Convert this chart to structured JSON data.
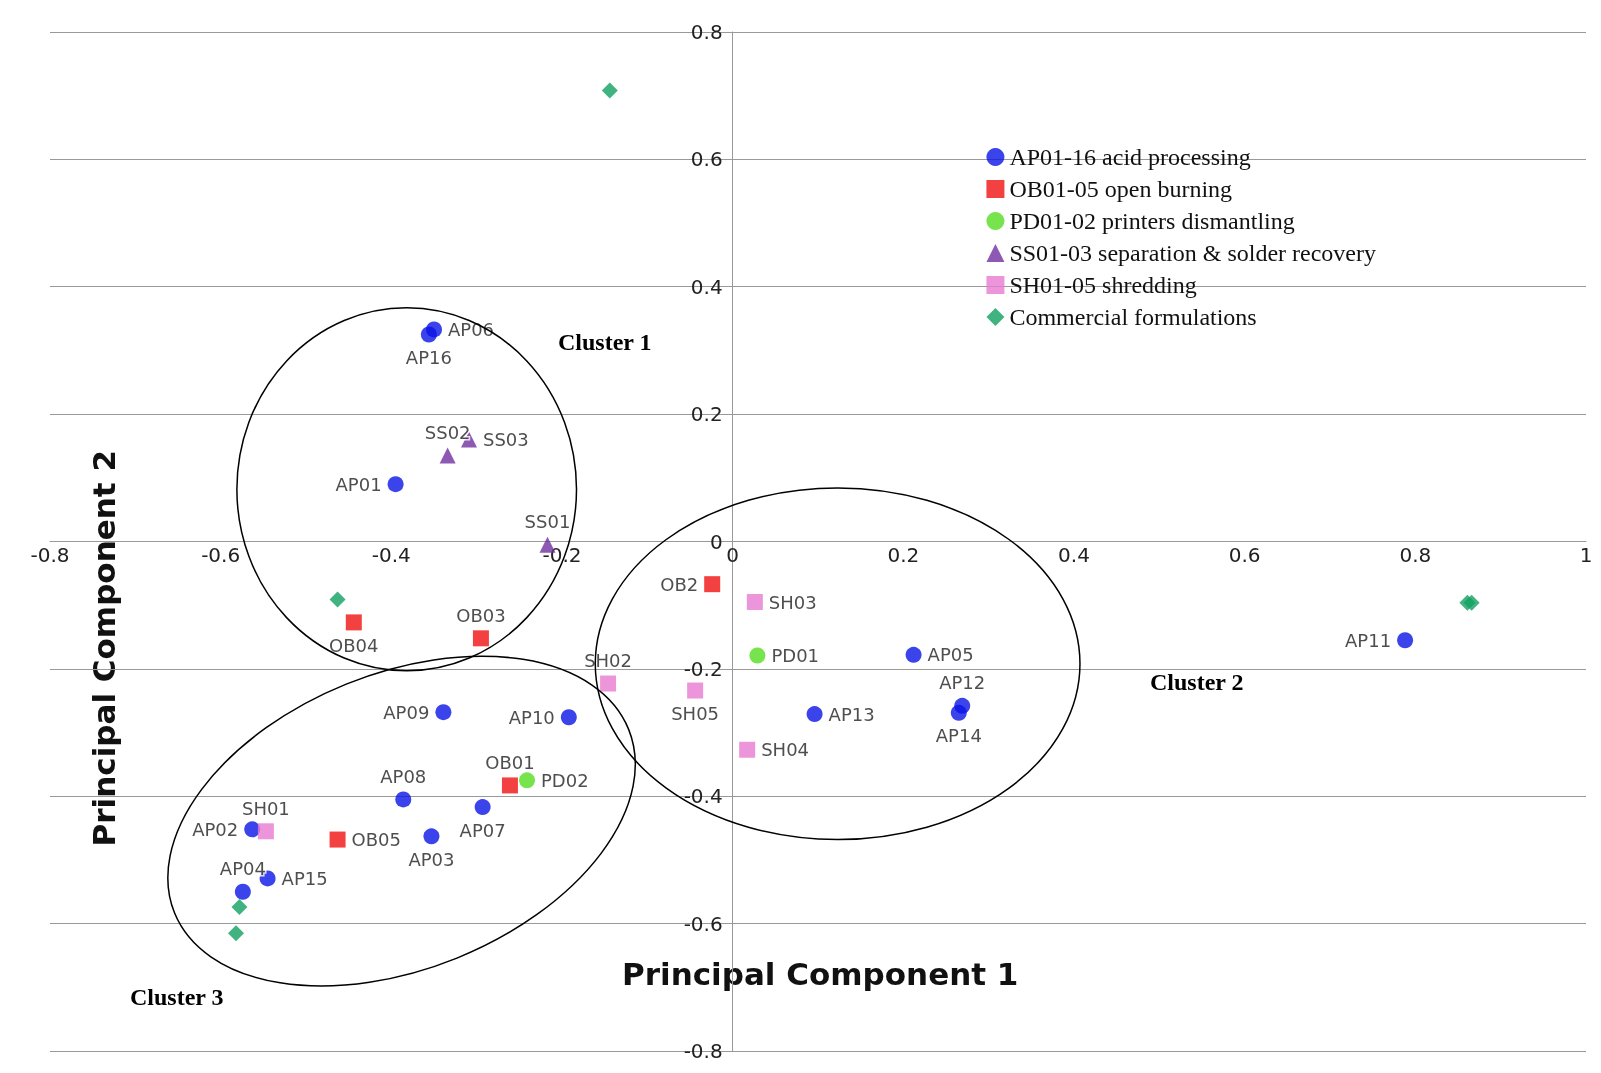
{
  "chart_data": {
    "type": "scatter",
    "xlabel": "Principal Component 1",
    "ylabel": "Principal Component 2",
    "xlim": [
      -0.8,
      1
    ],
    "xticks": [
      -0.8,
      -0.6,
      -0.4,
      -0.2,
      0,
      0.2,
      0.4,
      0.6,
      0.8,
      1
    ],
    "ylim": [
      -0.8,
      0.8
    ],
    "yticks": [
      -0.8,
      -0.6,
      -0.4,
      -0.2,
      0,
      0.2,
      0.4,
      0.6,
      0.8
    ],
    "grid": "y",
    "legend": "top right",
    "annotations": [
      "Cluster 1",
      "Cluster 2",
      "Cluster 3"
    ],
    "series": [
      {
        "name": "AP01-16 acid processing",
        "color": "#0a14e6",
        "marker": "circle",
        "x": [
          -0.35,
          -0.356,
          -0.395,
          -0.339,
          -0.192,
          -0.386,
          -0.293,
          -0.353,
          -0.563,
          -0.545,
          -0.574,
          0.212,
          0.269,
          0.265,
          0.096,
          0.788
        ],
        "values": [
          0.333,
          0.325,
          0.09,
          -0.268,
          -0.276,
          -0.405,
          -0.417,
          -0.463,
          -0.452,
          -0.529,
          -0.55,
          -0.178,
          -0.258,
          -0.269,
          -0.271,
          -0.155
        ],
        "value_labels": [
          "AP06",
          "AP16",
          "AP01",
          "AP09",
          "AP10",
          "AP08",
          "AP07",
          "AP03",
          "AP02",
          "AP15",
          "AP04",
          "AP05",
          "AP12",
          "AP14",
          "AP13",
          "AP11"
        ]
      },
      {
        "name": "OB01-05 open burning",
        "color": "#f01010",
        "marker": "square",
        "x": [
          -0.024,
          -0.444,
          -0.295,
          -0.261,
          -0.463
        ],
        "values": [
          -0.067,
          -0.127,
          -0.152,
          -0.383,
          -0.468
        ],
        "value_labels": [
          "OB2",
          "OB04",
          "OB03",
          "OB01",
          "OB05"
        ]
      },
      {
        "name": "PD01-02 printers dismantling",
        "color": "#55dd22",
        "marker": "circle",
        "x": [
          0.029,
          -0.241
        ],
        "values": [
          -0.179,
          -0.375
        ],
        "value_labels": [
          "PD01",
          "PD02"
        ]
      },
      {
        "name": "SS01-03 separation & solder recovery",
        "color": "#7030a0",
        "marker": "triangle",
        "x": [
          -0.334,
          -0.309,
          -0.217
        ],
        "values": [
          0.135,
          0.16,
          -0.005
        ],
        "value_labels": [
          "SS02",
          "SS03",
          "SS01"
        ]
      },
      {
        "name": "SH01-05 shredding",
        "color": "#e87ad2",
        "marker": "square",
        "x": [
          0.026,
          -0.146,
          -0.044,
          0.017,
          -0.547
        ],
        "values": [
          -0.095,
          -0.223,
          -0.234,
          -0.327,
          -0.455
        ],
        "value_labels": [
          "SH03",
          "SH02",
          "SH05",
          "SH04",
          "SH01"
        ]
      },
      {
        "name": "Commercial formulations",
        "color": "#10a060",
        "marker": "diamond",
        "x": [
          -0.144,
          -0.463,
          0.861,
          0.866,
          -0.578,
          -0.582
        ],
        "values": [
          0.708,
          -0.091,
          -0.096,
          -0.096,
          -0.574,
          -0.615
        ]
      }
    ]
  }
}
